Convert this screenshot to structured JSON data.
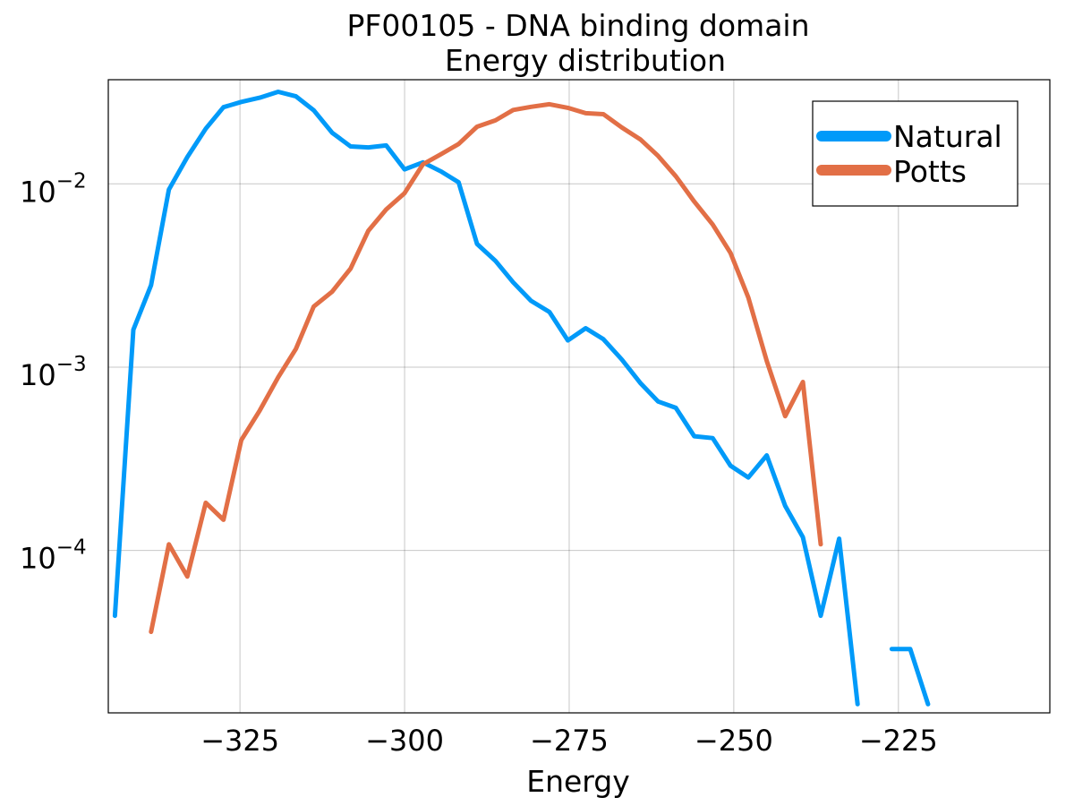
{
  "chart_data": {
    "type": "line",
    "title": "PF00105 - DNA binding domain",
    "subtitle": "Energy distribution",
    "xlabel": "Energy",
    "ylabel": "",
    "xlim": [
      -345,
      -202
    ],
    "ylim": [
      1.3e-05,
      0.037
    ],
    "yscale": "log",
    "grid": true,
    "legend_position": "top-right",
    "x_ticks": [
      {
        "value": -325,
        "label": "−325"
      },
      {
        "value": -300,
        "label": "−300"
      },
      {
        "value": -275,
        "label": "−275"
      },
      {
        "value": -250,
        "label": "−250"
      },
      {
        "value": -225,
        "label": "−225"
      }
    ],
    "y_ticks": [
      {
        "value": 0.0001,
        "base": "10",
        "exp": "−4"
      },
      {
        "value": 0.001,
        "base": "10",
        "exp": "−3"
      },
      {
        "value": 0.01,
        "base": "10",
        "exp": "−2"
      }
    ],
    "series": [
      {
        "name": "Natural",
        "color": "#009AF9",
        "points": [
          [
            -344.0,
            4.4e-05
          ],
          [
            -341.2,
            0.0016
          ],
          [
            -338.5,
            0.0028
          ],
          [
            -335.8,
            0.0093
          ],
          [
            -333.0,
            0.014
          ],
          [
            -330.2,
            0.02
          ],
          [
            -327.5,
            0.0262
          ],
          [
            -324.8,
            0.028
          ],
          [
            -322.0,
            0.0295
          ],
          [
            -319.2,
            0.0318
          ],
          [
            -316.5,
            0.03
          ],
          [
            -313.8,
            0.0252
          ],
          [
            -311.0,
            0.019
          ],
          [
            -308.2,
            0.016
          ],
          [
            -305.5,
            0.0158
          ],
          [
            -302.8,
            0.0162
          ],
          [
            -300.0,
            0.012
          ],
          [
            -297.2,
            0.0131
          ],
          [
            -294.5,
            0.0117
          ],
          [
            -291.8,
            0.0102
          ],
          [
            -289.0,
            0.0047
          ],
          [
            -286.2,
            0.0038
          ],
          [
            -283.5,
            0.0029
          ],
          [
            -280.8,
            0.0023
          ],
          [
            -278.0,
            0.002
          ],
          [
            -275.2,
            0.0014
          ],
          [
            -272.5,
            0.00163
          ],
          [
            -269.8,
            0.00142
          ],
          [
            -267.0,
            0.0011
          ],
          [
            -264.2,
            0.00082
          ],
          [
            -261.5,
            0.00065
          ],
          [
            -258.8,
            0.0006
          ],
          [
            -256.0,
            0.00042
          ],
          [
            -253.2,
            0.00041
          ],
          [
            -250.5,
            0.00029
          ],
          [
            -247.8,
            0.00025
          ],
          [
            -245.0,
            0.00033
          ],
          [
            -242.2,
            0.000175
          ],
          [
            -239.5,
            0.000118
          ],
          [
            -236.8,
            4.4e-05
          ],
          [
            -234.0,
            0.000116
          ],
          [
            -231.2,
            1.45e-05
          ],
          null,
          [
            -226.0,
            2.9e-05
          ],
          [
            -223.2,
            2.9e-05
          ],
          [
            -220.5,
            1.45e-05
          ]
        ]
      },
      {
        "name": "Potts",
        "color": "#E26F46",
        "points": [
          [
            -338.5,
            3.6e-05
          ],
          [
            -335.8,
            0.000108
          ],
          [
            -333.0,
            7.2e-05
          ],
          [
            -330.2,
            0.000182
          ],
          [
            -327.5,
            0.000147
          ],
          [
            -324.8,
            0.0004
          ],
          [
            -322.0,
            0.00058
          ],
          [
            -319.2,
            0.00088
          ],
          [
            -316.5,
            0.00126
          ],
          [
            -313.8,
            0.00214
          ],
          [
            -311.0,
            0.00258
          ],
          [
            -308.2,
            0.00345
          ],
          [
            -305.5,
            0.00555
          ],
          [
            -302.8,
            0.00725
          ],
          [
            -300.0,
            0.0089
          ],
          [
            -297.2,
            0.0128
          ],
          [
            -294.5,
            0.0145
          ],
          [
            -291.8,
            0.0165
          ],
          [
            -289.0,
            0.0205
          ],
          [
            -286.2,
            0.0222
          ],
          [
            -283.5,
            0.0253
          ],
          [
            -280.8,
            0.0263
          ],
          [
            -278.0,
            0.0272
          ],
          [
            -275.2,
            0.026
          ],
          [
            -272.5,
            0.0243
          ],
          [
            -269.8,
            0.024
          ],
          [
            -267.0,
            0.0203
          ],
          [
            -264.2,
            0.0175
          ],
          [
            -261.5,
            0.0142
          ],
          [
            -258.8,
            0.011
          ],
          [
            -256.0,
            0.008
          ],
          [
            -253.2,
            0.006
          ],
          [
            -250.5,
            0.0042
          ],
          [
            -247.8,
            0.0024
          ],
          [
            -245.0,
            0.00108
          ],
          [
            -242.2,
            0.00054
          ],
          [
            -239.5,
            0.00083
          ],
          [
            -236.8,
            0.000108
          ]
        ]
      }
    ]
  }
}
